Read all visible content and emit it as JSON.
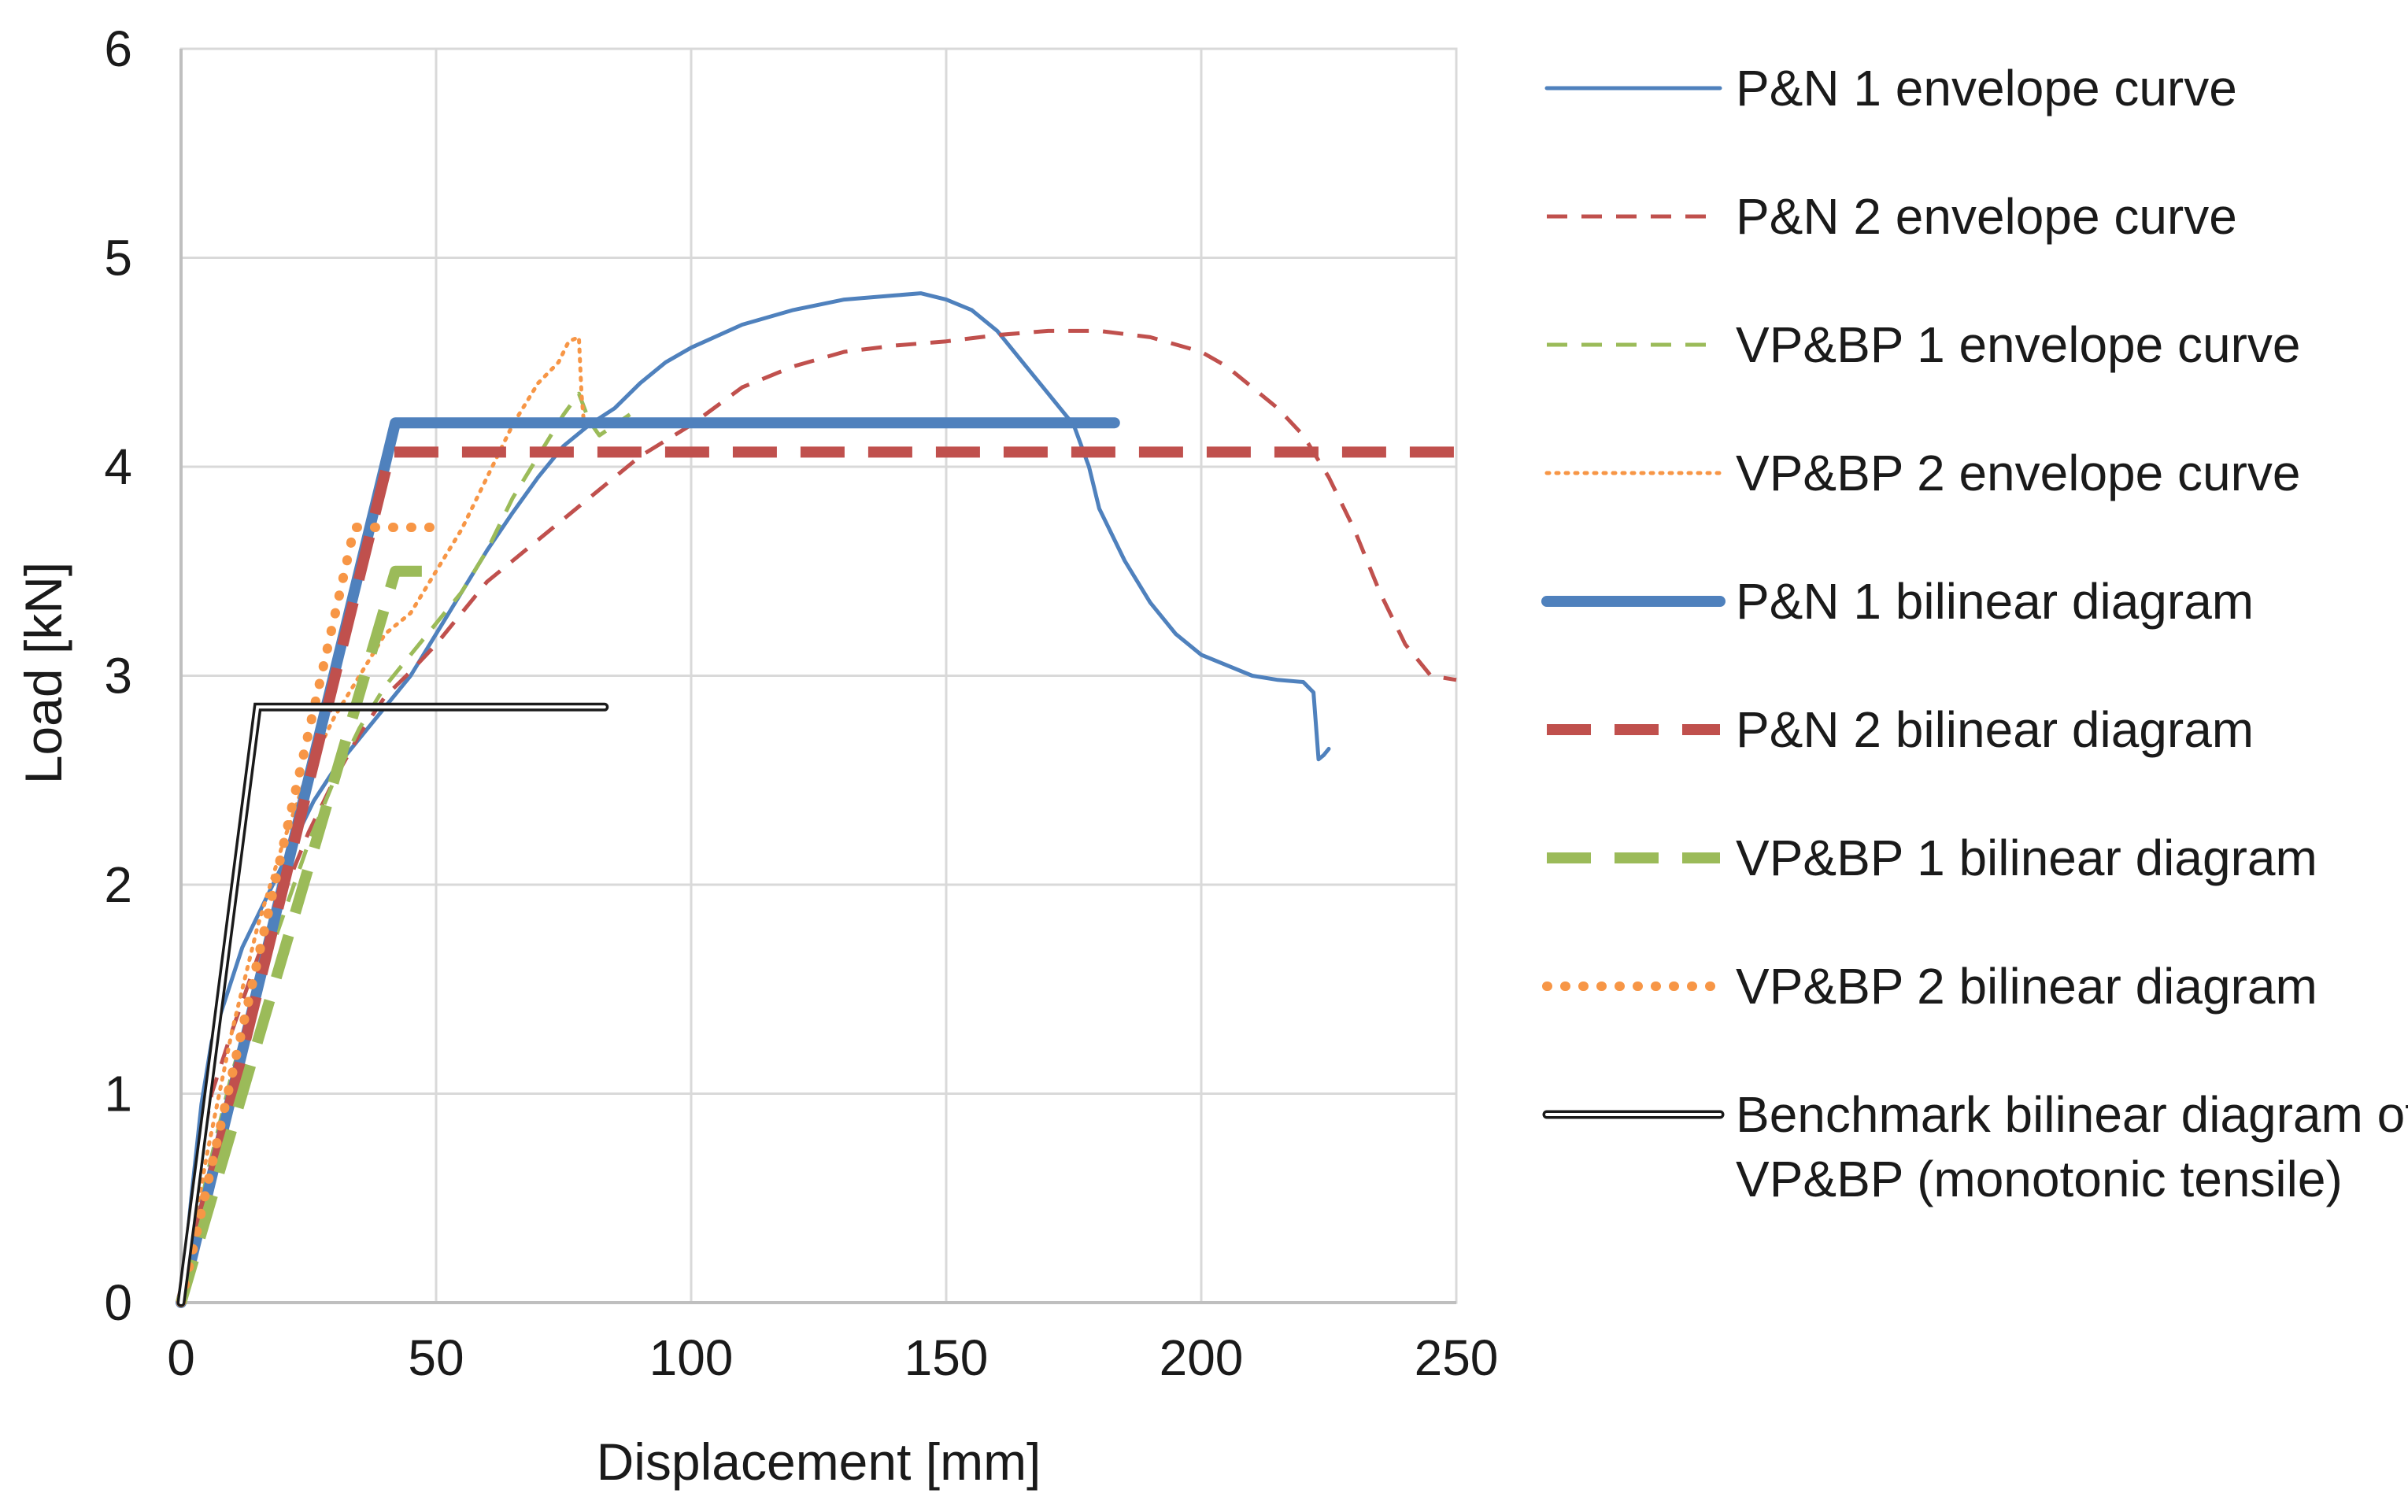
{
  "chart_data": {
    "type": "line",
    "title": "",
    "xlabel": "Displacement [mm]",
    "ylabel": "Load [kN]",
    "xlim": [
      0,
      250
    ],
    "ylim": [
      0,
      6
    ],
    "x_ticks": [
      0,
      50,
      100,
      150,
      200,
      250
    ],
    "y_ticks": [
      0,
      1,
      2,
      3,
      4,
      5,
      6
    ],
    "grid": true,
    "legend_position": "right",
    "series": [
      {
        "name": "P&N 1 envelope curve",
        "color": "#4f81bd",
        "style": "solid-thin",
        "x": [
          0,
          2,
          4,
          6,
          8,
          10,
          12,
          15,
          18,
          22,
          26,
          30,
          35,
          40,
          45,
          50,
          55,
          60,
          65,
          70,
          75,
          80,
          85,
          90,
          95,
          100,
          110,
          120,
          130,
          140,
          145,
          150,
          155,
          160,
          165,
          170,
          175,
          178,
          180,
          185,
          190,
          195,
          200,
          205,
          210,
          215,
          220,
          222,
          223,
          224,
          225
        ],
        "y": [
          0,
          0.5,
          0.95,
          1.25,
          1.4,
          1.55,
          1.7,
          1.85,
          2.0,
          2.2,
          2.4,
          2.55,
          2.7,
          2.85,
          3.0,
          3.2,
          3.4,
          3.6,
          3.78,
          3.95,
          4.1,
          4.2,
          4.28,
          4.4,
          4.5,
          4.57,
          4.68,
          4.75,
          4.8,
          4.82,
          4.83,
          4.8,
          4.75,
          4.65,
          4.5,
          4.35,
          4.2,
          4.0,
          3.8,
          3.55,
          3.35,
          3.2,
          3.1,
          3.05,
          3.0,
          2.98,
          2.97,
          2.92,
          2.6,
          2.62,
          2.65
        ]
      },
      {
        "name": "P&N 2 envelope curve",
        "color": "#c0504d",
        "style": "dashed-thin",
        "x": [
          0,
          3,
          6,
          10,
          15,
          20,
          25,
          30,
          35,
          40,
          45,
          50,
          55,
          60,
          65,
          70,
          75,
          80,
          85,
          90,
          100,
          110,
          120,
          130,
          140,
          150,
          160,
          170,
          180,
          190,
          200,
          205,
          210,
          215,
          220,
          225,
          230,
          235,
          240,
          245,
          250
        ],
        "y": [
          0,
          0.6,
          1.0,
          1.3,
          1.65,
          1.95,
          2.25,
          2.5,
          2.72,
          2.9,
          3.02,
          3.15,
          3.3,
          3.45,
          3.55,
          3.65,
          3.75,
          3.85,
          3.95,
          4.05,
          4.2,
          4.38,
          4.48,
          4.55,
          4.58,
          4.6,
          4.63,
          4.65,
          4.65,
          4.62,
          4.55,
          4.48,
          4.38,
          4.28,
          4.15,
          3.95,
          3.7,
          3.4,
          3.15,
          3.0,
          2.98
        ]
      },
      {
        "name": "VP&BP 1 envelope curve",
        "color": "#9bbb59",
        "style": "dashed-thin",
        "x": [
          0,
          5,
          10,
          15,
          20,
          25,
          30,
          35,
          40,
          45,
          50,
          55,
          60,
          65,
          70,
          75,
          78,
          80,
          82,
          85,
          88
        ],
        "y": [
          0,
          0.6,
          1.1,
          1.5,
          1.85,
          2.2,
          2.5,
          2.75,
          2.95,
          3.1,
          3.25,
          3.4,
          3.6,
          3.85,
          4.05,
          4.25,
          4.35,
          4.22,
          4.15,
          4.2,
          4.25
        ]
      },
      {
        "name": "VP&BP 2 envelope curve",
        "color": "#f79646",
        "style": "dotted-thin",
        "x": [
          0,
          5,
          10,
          15,
          20,
          25,
          30,
          35,
          40,
          45,
          50,
          55,
          60,
          65,
          70,
          74,
          76,
          78,
          78.5,
          79
        ],
        "y": [
          0,
          0.7,
          1.3,
          1.8,
          2.2,
          2.55,
          2.8,
          3.0,
          3.2,
          3.3,
          3.5,
          3.7,
          3.95,
          4.2,
          4.4,
          4.5,
          4.6,
          4.62,
          4.35,
          4.2
        ]
      },
      {
        "name": "P&N 1 bilinear diagram",
        "color": "#4f81bd",
        "style": "solid-thick",
        "x": [
          0,
          42,
          183
        ],
        "y": [
          0,
          4.21,
          4.21
        ]
      },
      {
        "name": "P&N 2 bilinear diagram",
        "color": "#c0504d",
        "style": "dashed-thick",
        "x": [
          0,
          41,
          250
        ],
        "y": [
          0,
          4.07,
          4.07
        ]
      },
      {
        "name": "VP&BP 1 bilinear diagram",
        "color": "#9bbb59",
        "style": "dashed-thick",
        "x": [
          0,
          42,
          48
        ],
        "y": [
          0,
          3.5,
          3.5
        ]
      },
      {
        "name": "VP&BP 2 bilinear diagram",
        "color": "#f79646",
        "style": "dotted-thick",
        "x": [
          0,
          34,
          50
        ],
        "y": [
          0,
          3.71,
          3.71
        ]
      },
      {
        "name": "Benchmark bilinear diagram of VP&BP (monotonic tensile)",
        "legend_lines": [
          "Benchmark bilinear diagram of",
          "VP&BP (monotonic tensile)"
        ],
        "color": "#1a1a1a",
        "style": "double-line",
        "x": [
          0,
          15,
          83
        ],
        "y": [
          0,
          2.85,
          2.85
        ]
      }
    ]
  }
}
